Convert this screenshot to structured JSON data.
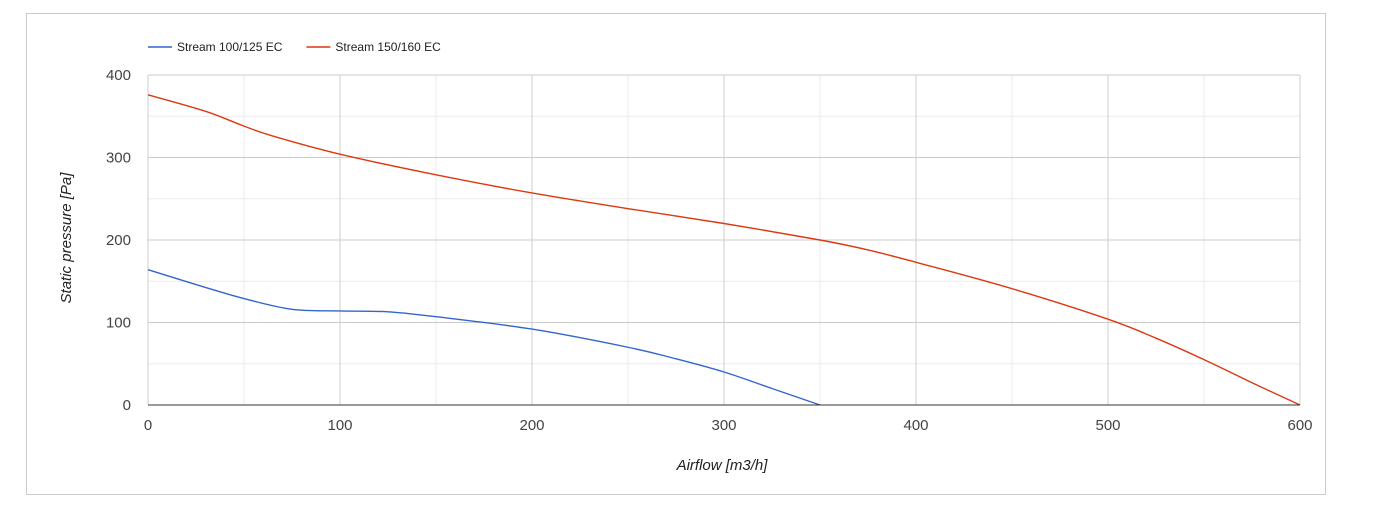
{
  "chart_data": {
    "type": "line",
    "xlabel": "Airflow [m3/h]",
    "ylabel": "Static pressure [Pa]",
    "xlim": [
      0,
      600
    ],
    "ylim": [
      0,
      400
    ],
    "x_ticks": [
      0,
      100,
      200,
      300,
      400,
      500,
      600
    ],
    "y_ticks": [
      0,
      100,
      200,
      300,
      400
    ],
    "grid": true,
    "legend_position": "top-left",
    "series": [
      {
        "name": "Stream 100/125 EC",
        "color": "#3366cc",
        "points": [
          [
            0,
            164
          ],
          [
            25,
            146
          ],
          [
            50,
            129
          ],
          [
            75,
            116
          ],
          [
            100,
            114
          ],
          [
            125,
            113
          ],
          [
            150,
            107
          ],
          [
            200,
            92
          ],
          [
            250,
            70
          ],
          [
            275,
            56
          ],
          [
            300,
            40
          ],
          [
            325,
            20
          ],
          [
            350,
            0
          ]
        ]
      },
      {
        "name": "Stream 150/160 EC",
        "color": "#dc3912",
        "points": [
          [
            0,
            376
          ],
          [
            30,
            356
          ],
          [
            50,
            338
          ],
          [
            65,
            326
          ],
          [
            100,
            304
          ],
          [
            150,
            279
          ],
          [
            200,
            257
          ],
          [
            250,
            238
          ],
          [
            300,
            220
          ],
          [
            350,
            200
          ],
          [
            375,
            188
          ],
          [
            400,
            173
          ],
          [
            450,
            141
          ],
          [
            500,
            104
          ],
          [
            525,
            81
          ],
          [
            550,
            55
          ],
          [
            575,
            27
          ],
          [
            600,
            0
          ]
        ]
      }
    ]
  }
}
